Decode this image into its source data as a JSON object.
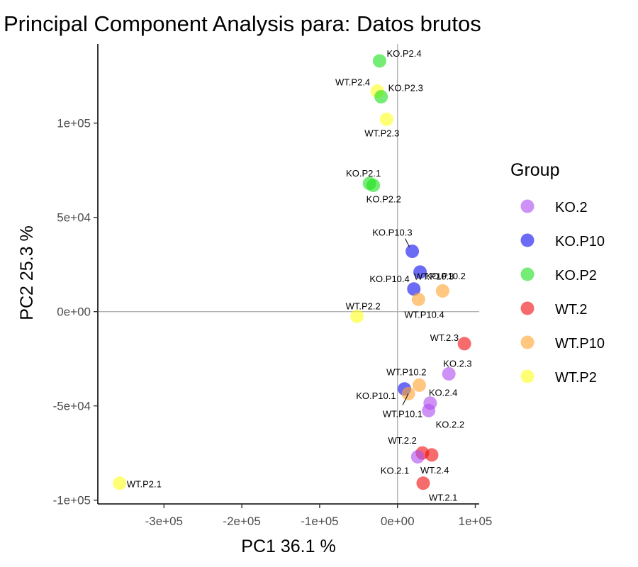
{
  "chart_data": {
    "type": "scatter",
    "title": "Principal Component Analysis para:  Datos brutos",
    "xlabel": "PC1 36.1 %",
    "ylabel": "PC2 25.3 %",
    "xlim": [
      -385000,
      105000
    ],
    "ylim": [
      -102000,
      142000
    ],
    "x_ticks": [
      -300000,
      -200000,
      -100000,
      0,
      100000
    ],
    "x_tick_labels": [
      "-3e+05",
      "-2e+05",
      "-1e+05",
      "0e+00",
      "1e+05"
    ],
    "y_ticks": [
      -100000,
      -50000,
      0,
      50000,
      100000
    ],
    "y_tick_labels": [
      "-1e+05",
      "-5e+04",
      "0e+00",
      "5e+04",
      "1e+05"
    ],
    "reference_lines": {
      "x": 0,
      "y": 0
    },
    "grid": false,
    "legend": {
      "title": "Group",
      "placement": "right",
      "entries": [
        {
          "name": "KO.2",
          "color": "#B04DF0"
        },
        {
          "name": "KO.P10",
          "color": "#1010F0"
        },
        {
          "name": "KO.P2",
          "color": "#20E020"
        },
        {
          "name": "WT.2",
          "color": "#F01010"
        },
        {
          "name": "WT.P10",
          "color": "#FFA530"
        },
        {
          "name": "WT.P2",
          "color": "#FFFF20"
        }
      ]
    },
    "points": [
      {
        "label": "KO.P2.4",
        "group": "KO.P2",
        "x": -23000,
        "y": 133000
      },
      {
        "label": "WT.P2.4",
        "group": "WT.P2",
        "x": -26000,
        "y": 117000
      },
      {
        "label": "KO.P2.3",
        "group": "KO.P2",
        "x": -21000,
        "y": 114000
      },
      {
        "label": "WT.P2.3",
        "group": "WT.P2",
        "x": -14000,
        "y": 102000
      },
      {
        "label": "KO.P2.1",
        "group": "KO.P2",
        "x": -36000,
        "y": 68000
      },
      {
        "label": "KO.P2.2",
        "group": "KO.P2",
        "x": -31000,
        "y": 67000
      },
      {
        "label": "KO.P10.3",
        "group": "KO.P10",
        "x": 19000,
        "y": 32000
      },
      {
        "label": "KO.P10.2",
        "group": "KO.P10",
        "x": 29000,
        "y": 21000
      },
      {
        "label": "KO.P10.4",
        "group": "KO.P10",
        "x": 21000,
        "y": 12000
      },
      {
        "label": "WT.P10.3",
        "group": "WT.P10",
        "x": 58000,
        "y": 11000
      },
      {
        "label": "WT.P10.4",
        "group": "WT.P10",
        "x": 27000,
        "y": 6500
      },
      {
        "label": "WT.P2.2",
        "group": "WT.P2",
        "x": -52000,
        "y": -2500
      },
      {
        "label": "WT.2.3",
        "group": "WT.2",
        "x": 86000,
        "y": -17000
      },
      {
        "label": "KO.2.3",
        "group": "KO.2",
        "x": 66000,
        "y": -33000
      },
      {
        "label": "WT.P10.2",
        "group": "WT.P10",
        "x": 28000,
        "y": -39000
      },
      {
        "label": "KO.P10.1",
        "group": "KO.P10",
        "x": 9000,
        "y": -41000
      },
      {
        "label": "WT.P10.1",
        "group": "WT.P10",
        "x": 14000,
        "y": -43500
      },
      {
        "label": "KO.2.4",
        "group": "KO.2",
        "x": 42000,
        "y": -48500
      },
      {
        "label": "KO.2.2",
        "group": "KO.2",
        "x": 40000,
        "y": -52500
      },
      {
        "label": "WT.2.2",
        "group": "WT.2",
        "x": 32000,
        "y": -75000
      },
      {
        "label": "WT.2.4",
        "group": "WT.2",
        "x": 44000,
        "y": -76000
      },
      {
        "label": "KO.2.1",
        "group": "KO.2",
        "x": 26000,
        "y": -77000
      },
      {
        "label": "WT.2.1",
        "group": "WT.2",
        "x": 33000,
        "y": -91000
      },
      {
        "label": "WT.P2.1",
        "group": "WT.P2",
        "x": -357000,
        "y": -91000
      }
    ]
  }
}
